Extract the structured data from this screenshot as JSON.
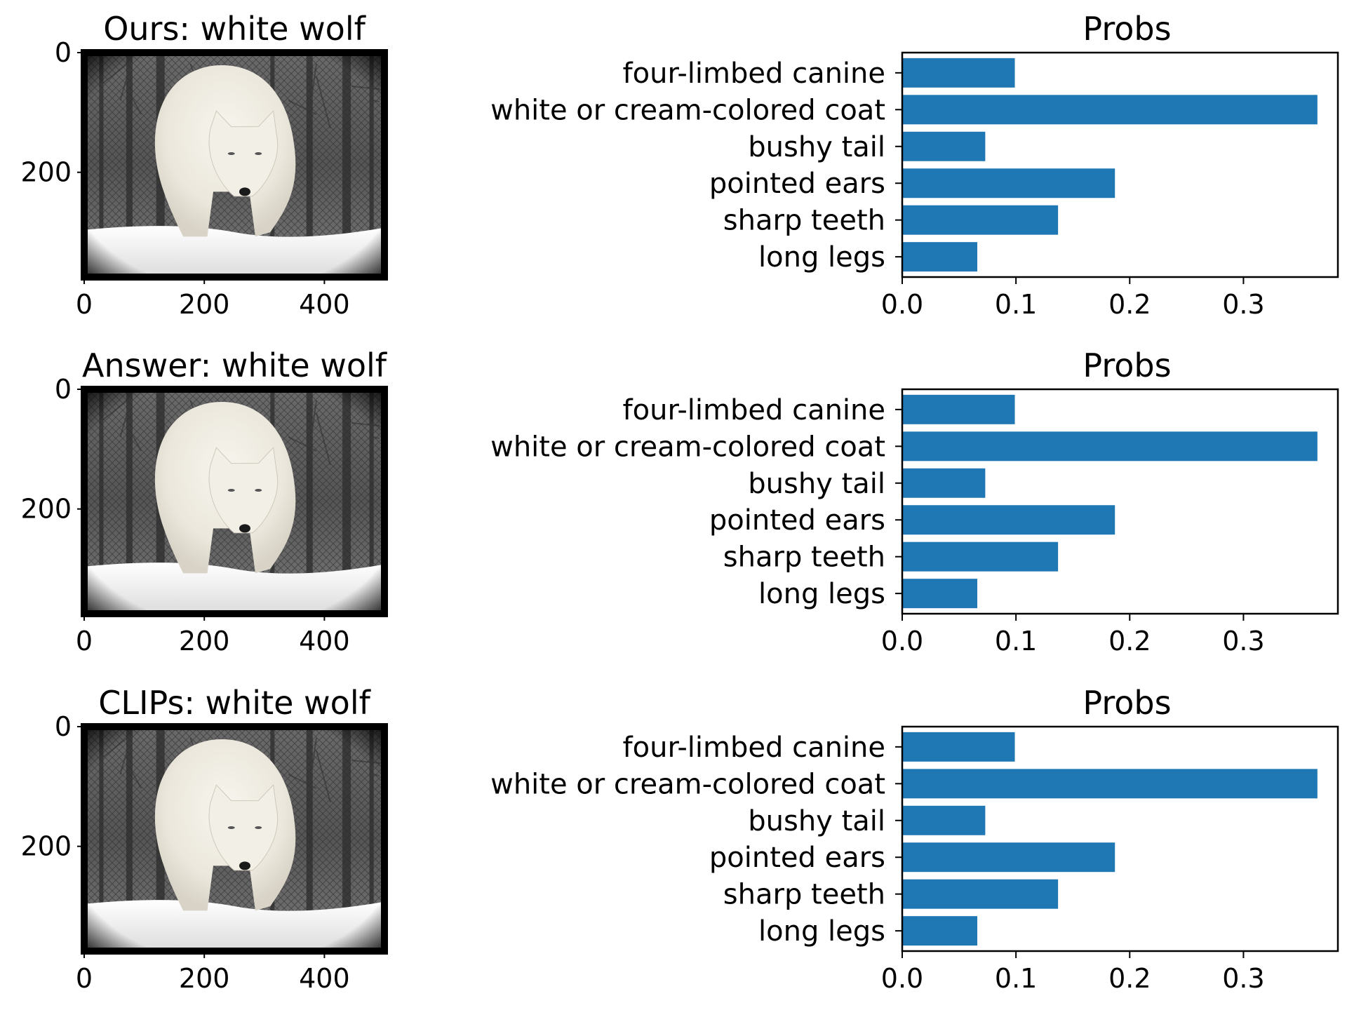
{
  "figure": {
    "image_panels": [
      {
        "title": "Ours: white wolf"
      },
      {
        "title": "Answer: white wolf"
      },
      {
        "title": "CLIPs: white wolf"
      }
    ],
    "image_axes": {
      "x_ticks": [
        "0",
        "200",
        "400"
      ],
      "y_ticks": [
        "0",
        "200"
      ],
      "x_range": [
        0,
        500
      ],
      "y_range": [
        0,
        375
      ]
    }
  },
  "chart_data": [
    {
      "type": "bar",
      "orientation": "horizontal",
      "title": "Probs",
      "categories": [
        "four-limbed canine",
        "white or cream-colored coat",
        "bushy tail",
        "pointed ears",
        "sharp teeth",
        "long legs"
      ],
      "values": [
        0.099,
        0.365,
        0.073,
        0.187,
        0.137,
        0.066
      ],
      "xlim": [
        0,
        0.383
      ],
      "x_ticks": [
        "0.0",
        "0.1",
        "0.2",
        "0.3"
      ],
      "bar_color": "#1f77b4",
      "grid": false
    },
    {
      "type": "bar",
      "orientation": "horizontal",
      "title": "Probs",
      "categories": [
        "four-limbed canine",
        "white or cream-colored coat",
        "bushy tail",
        "pointed ears",
        "sharp teeth",
        "long legs"
      ],
      "values": [
        0.099,
        0.365,
        0.073,
        0.187,
        0.137,
        0.066
      ],
      "xlim": [
        0,
        0.383
      ],
      "x_ticks": [
        "0.0",
        "0.1",
        "0.2",
        "0.3"
      ],
      "bar_color": "#1f77b4",
      "grid": false
    },
    {
      "type": "bar",
      "orientation": "horizontal",
      "title": "Probs",
      "categories": [
        "four-limbed canine",
        "white or cream-colored coat",
        "bushy tail",
        "pointed ears",
        "sharp teeth",
        "long legs"
      ],
      "values": [
        0.099,
        0.365,
        0.073,
        0.187,
        0.137,
        0.066
      ],
      "xlim": [
        0,
        0.383
      ],
      "x_ticks": [
        "0.0",
        "0.1",
        "0.2",
        "0.3"
      ],
      "bar_color": "#1f77b4",
      "grid": false
    }
  ]
}
